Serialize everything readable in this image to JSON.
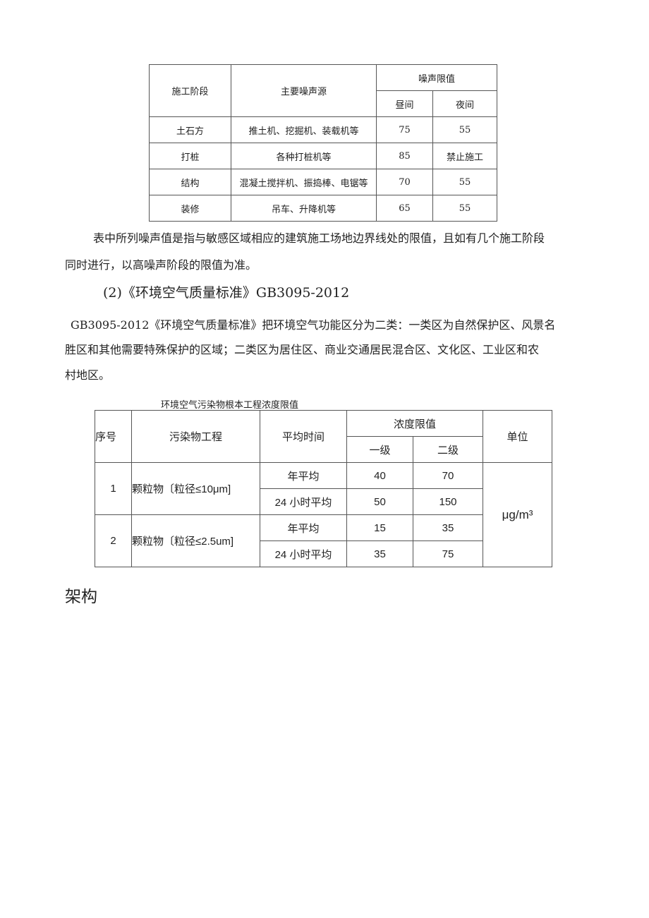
{
  "noise_table": {
    "headers": {
      "stage": "施工阶段",
      "source": "主要噪声源",
      "limit": "噪声限值",
      "day": "昼间",
      "night": "夜间"
    },
    "rows": [
      {
        "stage": "土石方",
        "source": "推土机、挖掘机、装载机等",
        "day": "75",
        "night": "55"
      },
      {
        "stage": "打桩",
        "source": "各种打桩机等",
        "day": "85",
        "night": "禁止施工"
      },
      {
        "stage": "结构",
        "source": "混凝土搅拌机、振捣棒、电锯等",
        "day": "70",
        "night": "55"
      },
      {
        "stage": "装修",
        "source": "吊车、升降机等",
        "day": "65",
        "night": "55"
      }
    ]
  },
  "note_lines": [
    "表中所列噪声值是指与敏感区域相应的建筑施工场地边界线处的限值，且如有几个施工阶段",
    "同时进行，以高噪声阶段的限值为准。"
  ],
  "heading": "(2)《环境空气质量标准》GB3095-2012",
  "para_lines": [
    "GB3095-2012《环境空气质量标准》把环境空气功能区分为二类：一类区为自然保护区、风景名",
    "胜区和其他需要特殊保护的区域；二类区为居住区、商业交通居民混合区、文化区、工业区和农",
    "村地区。"
  ],
  "air_table": {
    "caption": "环境空气污染物根本工程浓度限值",
    "headers": {
      "no": "序号",
      "item": "污染物工程",
      "time": "平均时间",
      "limit": "浓度限值",
      "grade1": "一级",
      "grade2": "二级",
      "unit": "单位"
    },
    "unit_value": "μg/m³",
    "groups": [
      {
        "no": "1",
        "item": "颗粒物〔粒径≤10μm]",
        "rows": [
          {
            "time": "年平均",
            "g1": "40",
            "g2": "70"
          },
          {
            "time": "24 小时平均",
            "g1": "50",
            "g2": "150"
          }
        ]
      },
      {
        "no": "2",
        "item": "颗粒物〔粒径≤2.5um]",
        "rows": [
          {
            "time": "年平均",
            "g1": "15",
            "g2": "35"
          },
          {
            "time": "24 小时平均",
            "g1": "35",
            "g2": "75"
          }
        ]
      }
    ]
  },
  "footer_heading": "架构"
}
